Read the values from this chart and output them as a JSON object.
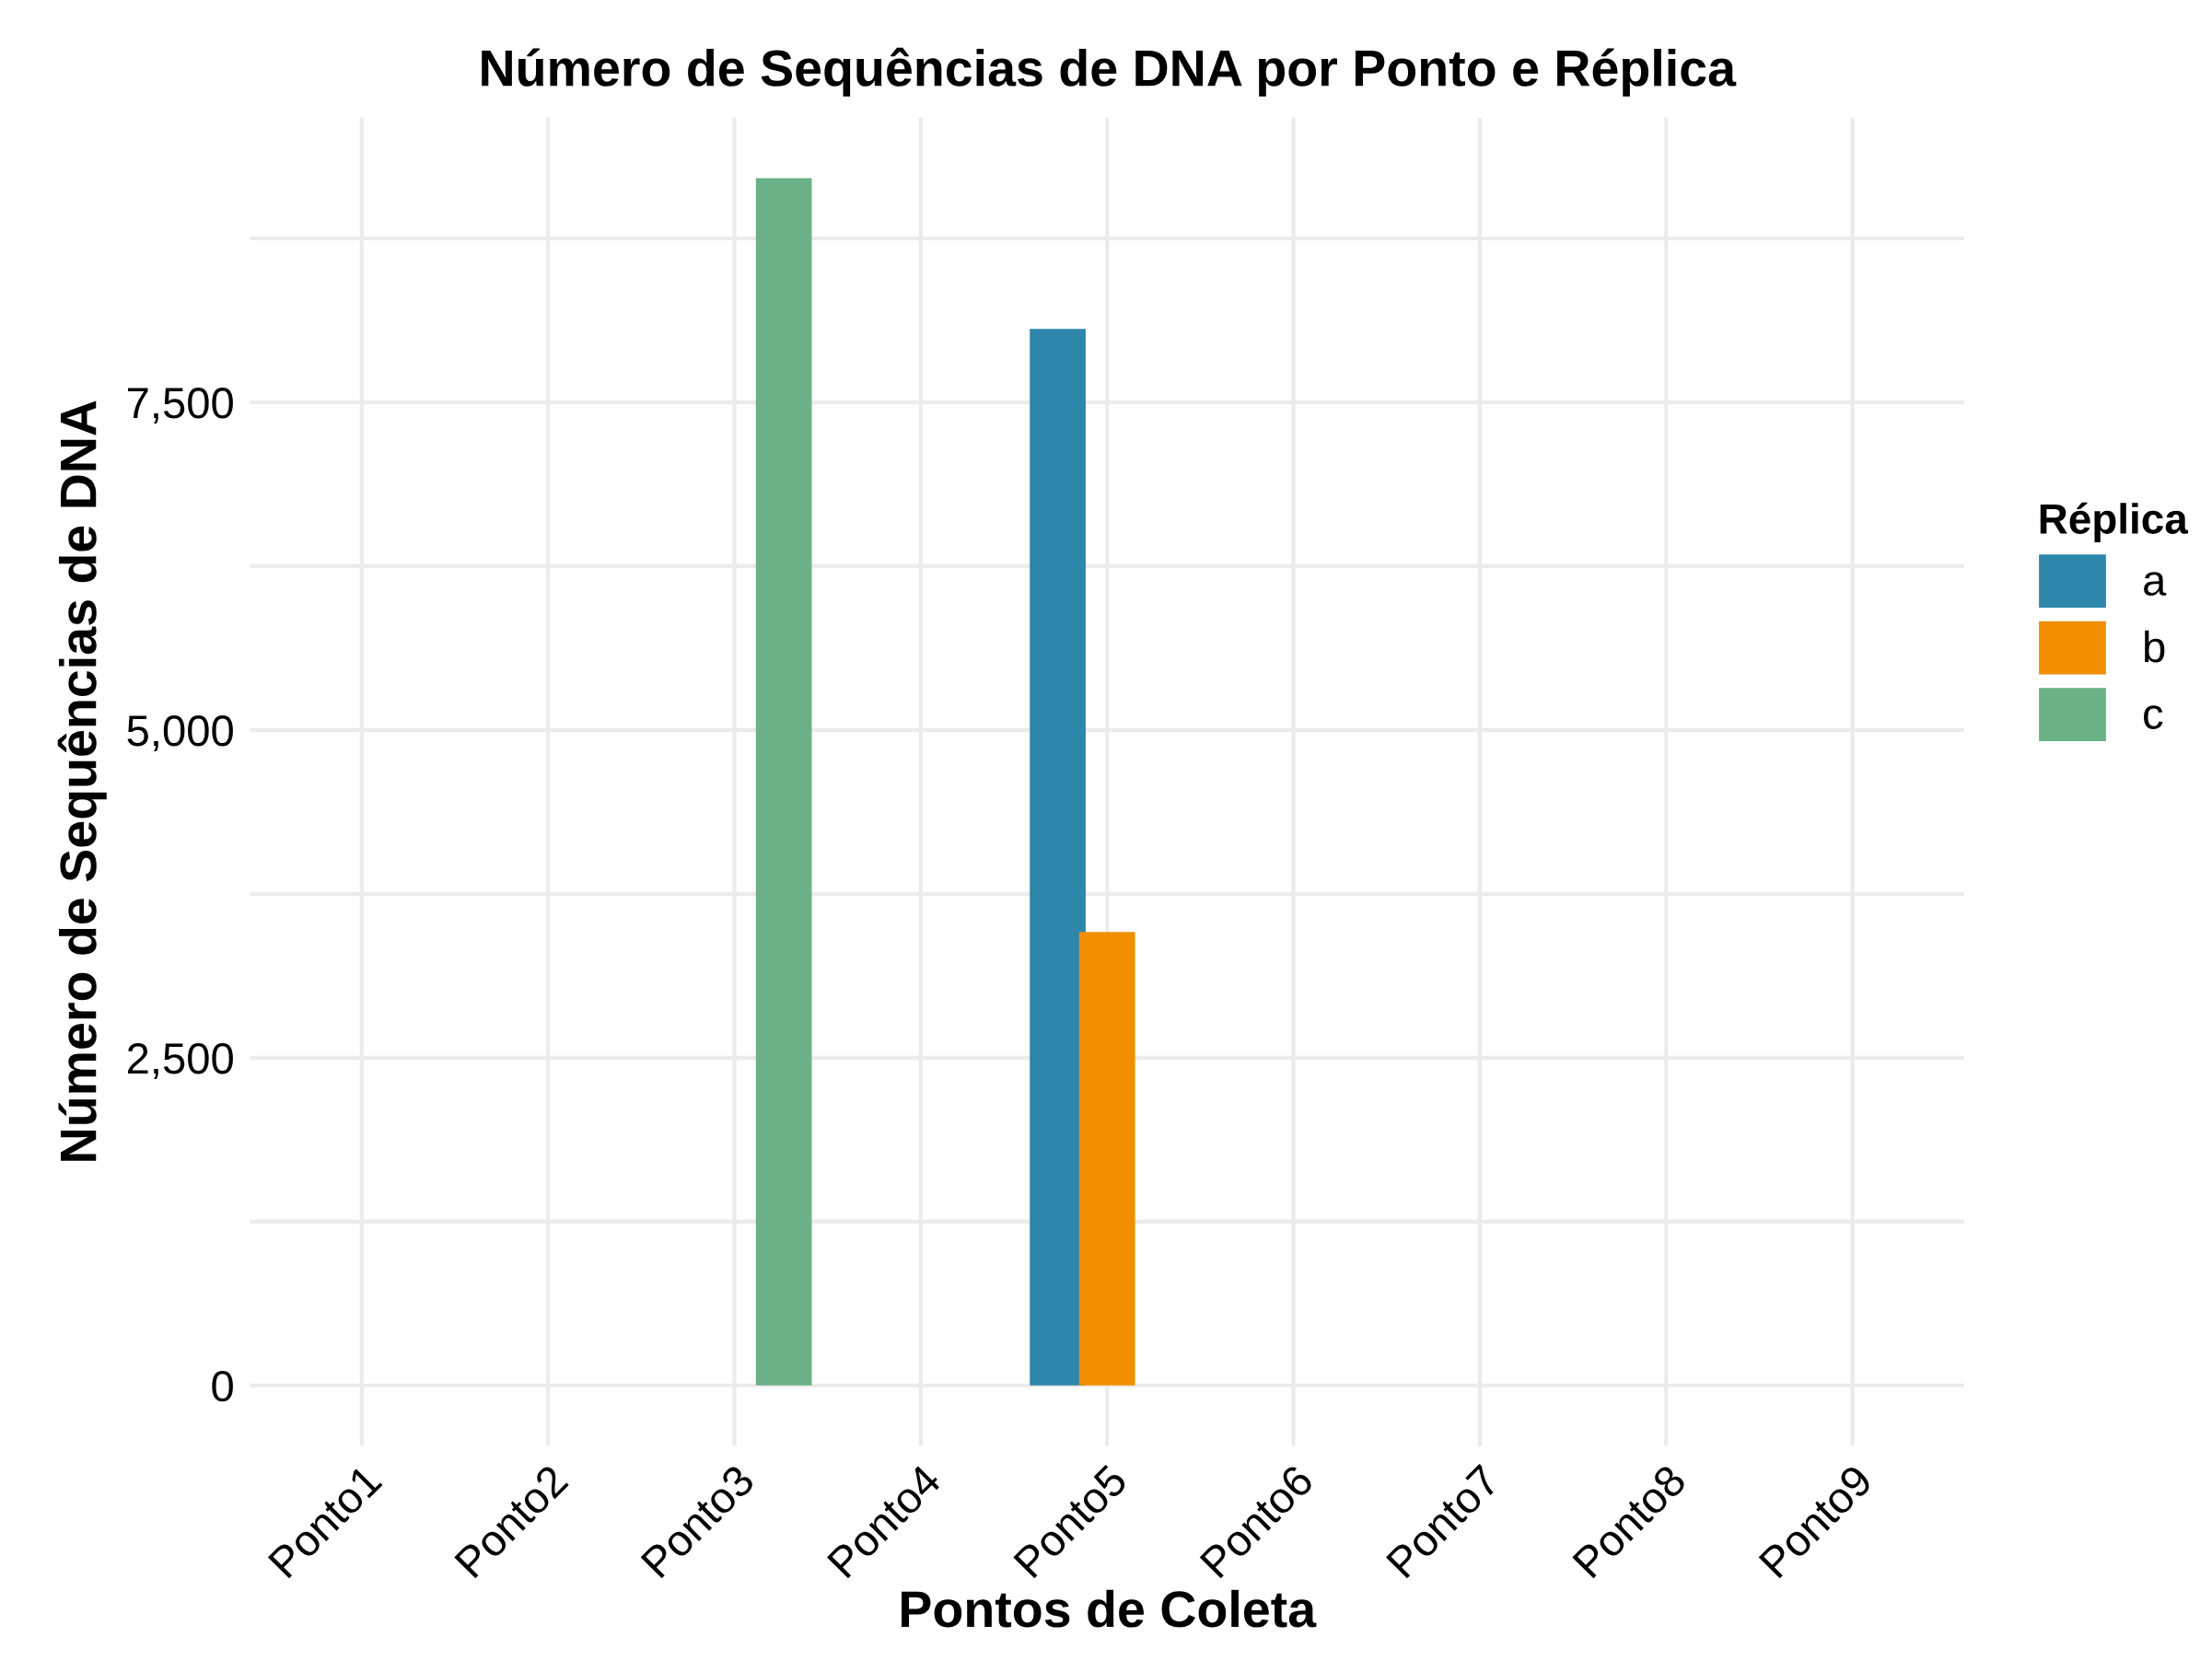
{
  "chart_data": {
    "type": "bar",
    "title": "Número de Sequências de DNA por Ponto e Réplica",
    "xlabel": "Pontos de Coleta",
    "ylabel": "Número de Sequências de DNA",
    "legend_title": "Réplica",
    "categories": [
      "Ponto1",
      "Ponto2",
      "Ponto3",
      "Ponto4",
      "Ponto5",
      "Ponto6",
      "Ponto7",
      "Ponto8",
      "Ponto9"
    ],
    "series": [
      {
        "name": "a",
        "color": "#2e86ab",
        "values": [
          null,
          null,
          null,
          null,
          8060,
          null,
          null,
          null,
          null
        ]
      },
      {
        "name": "b",
        "color": "#f18f01",
        "values": [
          null,
          null,
          null,
          null,
          3460,
          null,
          null,
          null,
          null
        ]
      },
      {
        "name": "c",
        "color": "#6ab187",
        "values": [
          null,
          null,
          9210,
          null,
          null,
          null,
          null,
          null,
          null
        ]
      }
    ],
    "ylim": [
      -461,
      9670
    ],
    "yticks": [
      0,
      {
        "value": 1250,
        "label": null
      },
      {
        "value": 2500,
        "label": "2,500"
      },
      {
        "value": 3750,
        "label": null
      },
      {
        "value": 5000,
        "label": "5,000"
      },
      {
        "value": 6250,
        "label": null
      },
      {
        "value": 7500,
        "label": "7,500"
      },
      {
        "value": 8750,
        "label": null
      }
    ],
    "grid": true,
    "legend": "right"
  }
}
